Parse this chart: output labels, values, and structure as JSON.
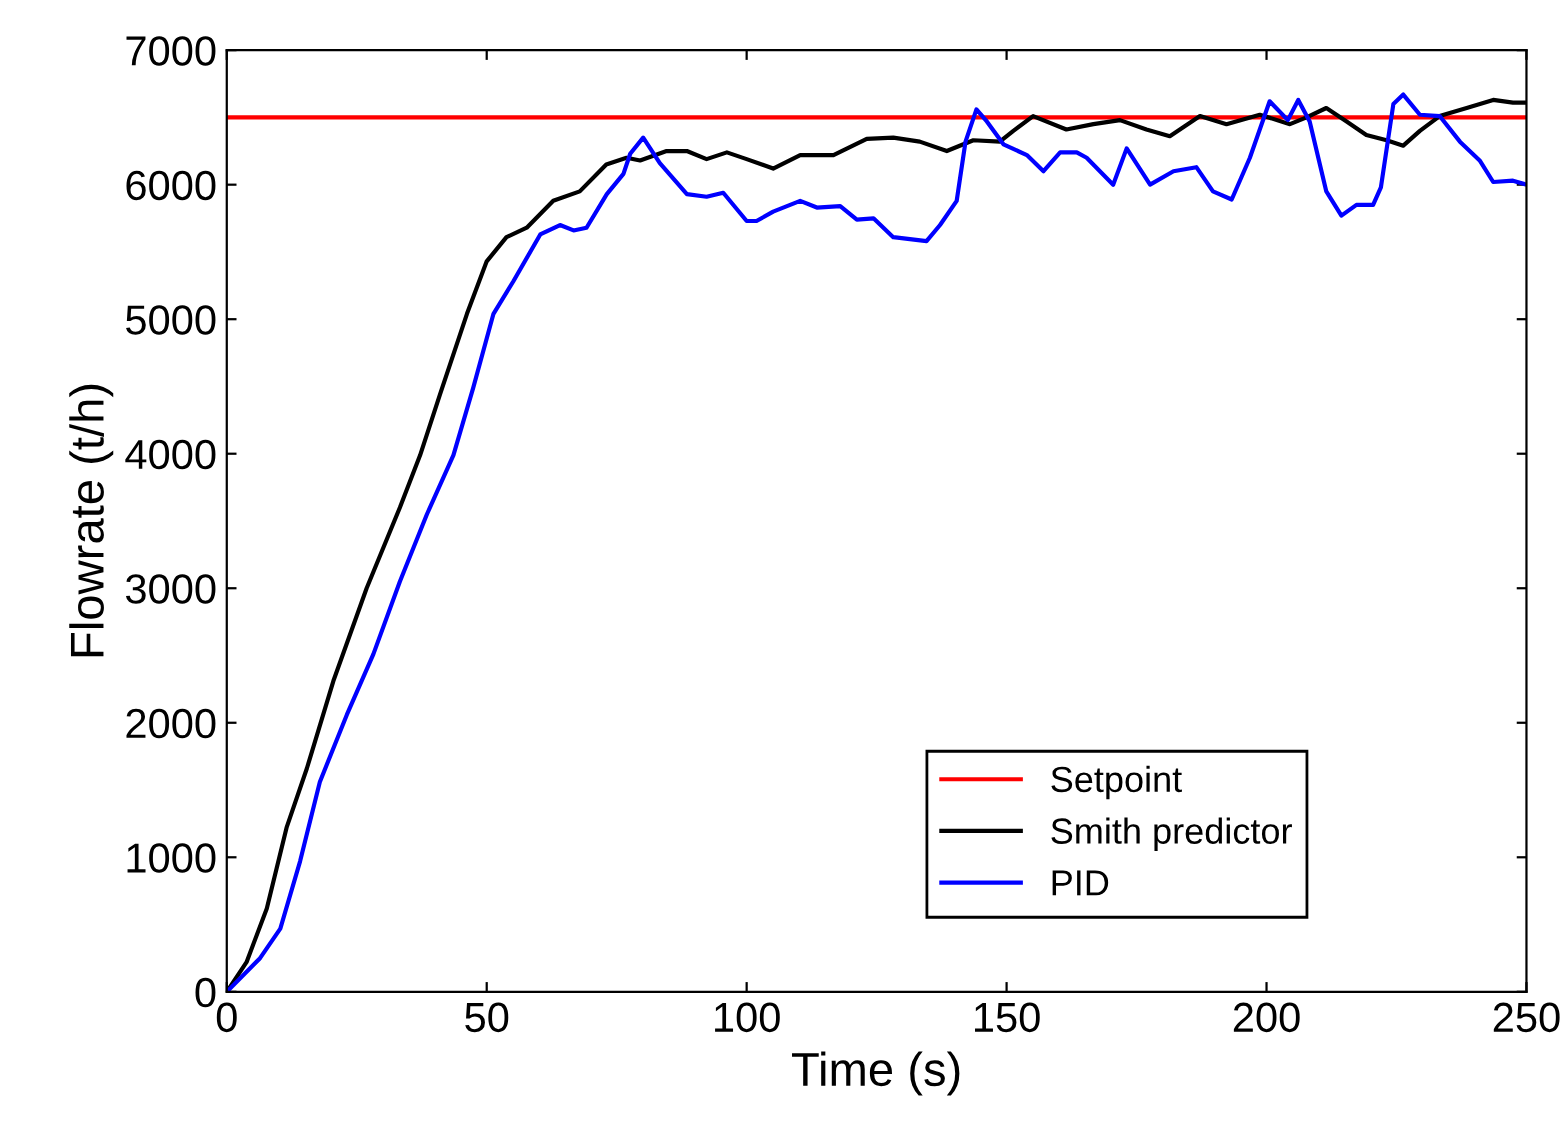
{
  "chart_data": {
    "type": "line",
    "xlabel": "Time (s)",
    "ylabel": "Flowrate (t/h)",
    "xlim": [
      0,
      250
    ],
    "xticks": [
      0,
      50,
      100,
      150,
      200,
      250
    ],
    "ylim": [
      0,
      7000
    ],
    "yticks": [
      0,
      1000,
      2000,
      3000,
      4000,
      5000,
      6000,
      7000
    ],
    "grid": false,
    "legend": "bottom right",
    "marker": "none",
    "line_style": "solid",
    "series": [
      {
        "name": "Setpoint",
        "color": "#ff0000",
        "x": [
          0,
          250
        ],
        "values": [
          6500,
          6500
        ]
      },
      {
        "name": "Smith predictor",
        "color": "#000000",
        "x": [
          0,
          3.8,
          7.7,
          11.5,
          15.4,
          20.5,
          26.9,
          33.3,
          37.2,
          41,
          46.2,
          50,
          53.8,
          57.7,
          62.8,
          67.9,
          73,
          76.9,
          79.5,
          84.6,
          88.5,
          92.3,
          96.2,
          100,
          105.1,
          110.3,
          116.7,
          123.1,
          128.2,
          133.3,
          138.5,
          143.6,
          148.7,
          151.3,
          155.1,
          161.5,
          166.7,
          171.8,
          176.9,
          181.4,
          187.2,
          192.3,
          198.7,
          204.5,
          207.7,
          211.5,
          215.4,
          219.2,
          223.1,
          226.3,
          229.5,
          233.3,
          238.5,
          243.6,
          247.4,
          250
        ],
        "values": [
          0,
          220,
          620,
          1220,
          1660,
          2310,
          3000,
          3600,
          3990,
          4440,
          5040,
          5430,
          5610,
          5680,
          5880,
          5950,
          6150,
          6200,
          6180,
          6250,
          6250,
          6190,
          6240,
          6190,
          6120,
          6220,
          6220,
          6340,
          6350,
          6320,
          6250,
          6330,
          6320,
          6400,
          6510,
          6410,
          6450,
          6480,
          6410,
          6360,
          6510,
          6450,
          6520,
          6450,
          6500,
          6570,
          6470,
          6370,
          6330,
          6290,
          6400,
          6510,
          6570,
          6630,
          6610,
          6610
        ]
      },
      {
        "name": "PID",
        "color": "#0000ff",
        "x": [
          0,
          6.4,
          10.3,
          14.1,
          17.9,
          23.1,
          28.2,
          33.3,
          38.5,
          43.6,
          47.4,
          51.3,
          55.1,
          60.3,
          64.1,
          66.7,
          69.2,
          73.1,
          76.3,
          77.6,
          80.1,
          83.3,
          88.5,
          92.3,
          95.5,
          100,
          101.9,
          105.1,
          110.3,
          113.5,
          118,
          121.2,
          124.4,
          128.2,
          134.6,
          137.2,
          140.4,
          142.1,
          144.2,
          146.2,
          149.4,
          153.9,
          157.1,
          160.3,
          163.5,
          165.4,
          170.5,
          173.1,
          177.6,
          182.1,
          186.5,
          189.7,
          193.3,
          196.8,
          200.6,
          204.1,
          206.1,
          208.3,
          211.5,
          214.4,
          217.3,
          220.5,
          222,
          224.4,
          226.3,
          229.5,
          233.3,
          237.2,
          241,
          243.6,
          247.4,
          250
        ],
        "values": [
          0,
          250,
          470,
          970,
          1560,
          2060,
          2510,
          3050,
          3550,
          3990,
          4490,
          5040,
          5280,
          5630,
          5700,
          5660,
          5680,
          5930,
          6080,
          6230,
          6350,
          6160,
          5930,
          5910,
          5940,
          5730,
          5730,
          5800,
          5880,
          5830,
          5840,
          5740,
          5750,
          5610,
          5580,
          5700,
          5880,
          6320,
          6560,
          6470,
          6300,
          6220,
          6100,
          6240,
          6240,
          6200,
          6000,
          6270,
          6000,
          6100,
          6130,
          5950,
          5890,
          6200,
          6620,
          6480,
          6630,
          6470,
          5950,
          5770,
          5850,
          5850,
          5980,
          6600,
          6670,
          6520,
          6510,
          6320,
          6180,
          6020,
          6030,
          6000
        ]
      }
    ]
  }
}
